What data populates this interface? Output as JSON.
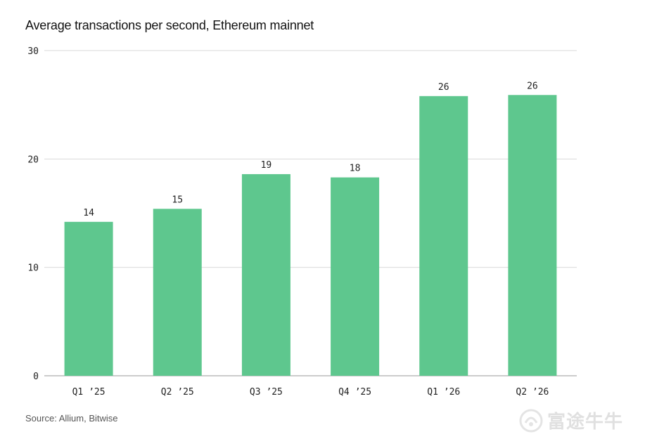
{
  "title": "Average transactions per second, Ethereum mainnet",
  "source": "Source: Allium, Bitwise",
  "watermark": {
    "text": "富途牛牛",
    "icon": "futu-bull-logo-icon"
  },
  "colors": {
    "bar": "#5ec78e",
    "grid": "#d9d9d9",
    "axis": "#999999",
    "text": "#222222"
  },
  "chart_data": {
    "type": "bar",
    "title": "Average transactions per second, Ethereum mainnet",
    "xlabel": "",
    "ylabel": "",
    "categories": [
      "Q1 ’25",
      "Q2 ’25",
      "Q3 ’25",
      "Q4 ’25",
      "Q1 ’26",
      "Q2 ’26"
    ],
    "values": [
      14.2,
      15.4,
      18.6,
      18.3,
      25.8,
      25.9
    ],
    "data_labels": [
      "14",
      "15",
      "19",
      "18",
      "26",
      "26"
    ],
    "ylim": [
      0,
      30
    ],
    "yticks": [
      0,
      10,
      20,
      30
    ],
    "grid": true,
    "legend": "none"
  }
}
